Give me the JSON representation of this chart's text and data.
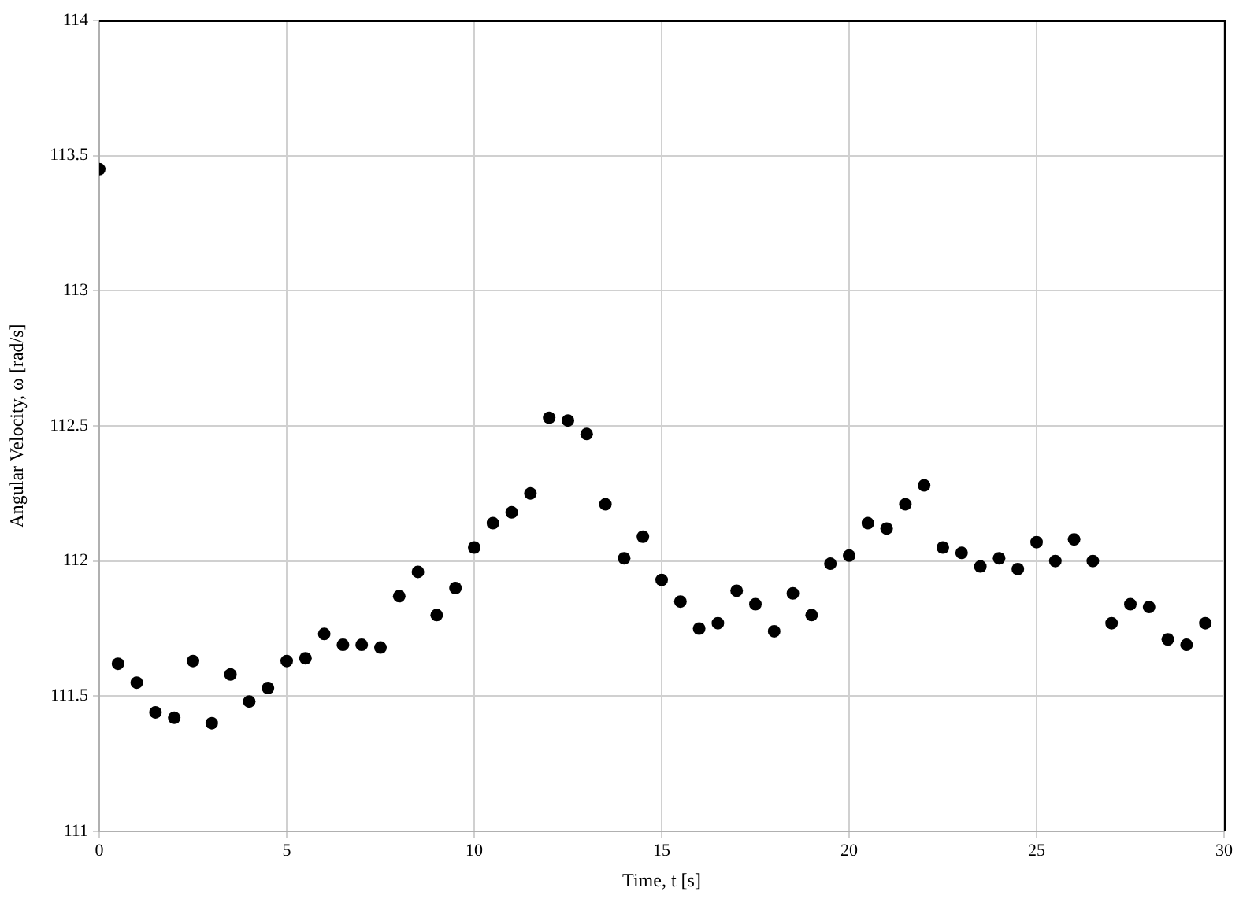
{
  "chart_data": {
    "type": "scatter",
    "xlabel": "Time, t [s]",
    "ylabel": "Angular Velocity, ω [rad/s]",
    "x": [
      0,
      0.5,
      1,
      1.5,
      2,
      2.5,
      3,
      3.5,
      4,
      4.5,
      5,
      5.5,
      6,
      6.5,
      7,
      7.5,
      8,
      8.5,
      9,
      9.5,
      10,
      10.5,
      11,
      11.5,
      12,
      12.5,
      13,
      13.5,
      14,
      14.5,
      15,
      15.5,
      16,
      16.5,
      17,
      17.5,
      18,
      18.5,
      19,
      19.5,
      20,
      20.5,
      21,
      21.5,
      22,
      22.5,
      23,
      23.5,
      24,
      24.5,
      25,
      25.5,
      26,
      26.5,
      27,
      27.5,
      28,
      28.5,
      29,
      29.5
    ],
    "series": [
      {
        "color": "#000000",
        "values": [
          113.45,
          111.62,
          111.55,
          111.44,
          111.42,
          111.63,
          111.4,
          111.58,
          111.48,
          111.53,
          111.63,
          111.64,
          111.73,
          111.69,
          111.69,
          111.68,
          111.87,
          111.96,
          111.8,
          111.9,
          112.05,
          112.14,
          112.18,
          112.25,
          112.53,
          112.52,
          112.47,
          112.21,
          112.01,
          112.09,
          111.93,
          111.85,
          111.75,
          111.77,
          111.89,
          111.84,
          111.74,
          111.88,
          111.8,
          111.99,
          112.02,
          112.14,
          112.12,
          112.21,
          112.28,
          112.05,
          112.03,
          111.98,
          112.01,
          111.97,
          112.07,
          112.0,
          112.08,
          112.0,
          111.77,
          111.84,
          111.83,
          111.71,
          111.69,
          111.77
        ]
      }
    ],
    "xlim": [
      0,
      30
    ],
    "xticks": [
      0,
      5,
      10,
      15,
      20,
      25,
      30
    ],
    "ylim": [
      111,
      114
    ],
    "yticks": [
      111,
      111.5,
      112,
      112.5,
      113,
      113.5,
      114
    ],
    "grid": true,
    "legend": false,
    "marker": "circle"
  }
}
